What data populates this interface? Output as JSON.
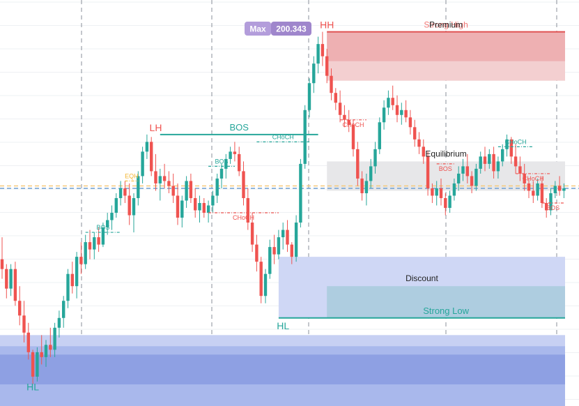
{
  "chart_data": {
    "type": "candlestick",
    "title": "",
    "xlabel": "",
    "ylabel": "",
    "ylim": [
      185.0,
      201.6
    ],
    "grid": true,
    "max_badge": {
      "label": "Max",
      "value": "200.343"
    },
    "swing_labels": [
      {
        "text": "HH",
        "bar": 74,
        "price": 200.3,
        "pos": "above"
      },
      {
        "text": "LH",
        "bar": 35,
        "price": 196.1,
        "pos": "above"
      },
      {
        "text": "HL",
        "bar": 7,
        "price": 186.1,
        "pos": "below"
      },
      {
        "text": "HL",
        "bar": 64,
        "price": 188.6,
        "pos": "below"
      }
    ],
    "structure_breaks": [
      {
        "text": "BOS",
        "from_bar": 19,
        "to_bar": 27,
        "price": 192.1,
        "kind": "bull",
        "major": false
      },
      {
        "text": "EQH",
        "from_bar": 28,
        "to_bar": 31,
        "price": 194.2,
        "kind": "eq",
        "major": false
      },
      {
        "text": "BOS",
        "from_bar": 36,
        "to_bar": 72,
        "price": 196.1,
        "kind": "bull",
        "major": true
      },
      {
        "text": "BOS",
        "from_bar": 47,
        "to_bar": 53,
        "price": 194.8,
        "kind": "bull",
        "major": false
      },
      {
        "text": "CHoCH",
        "from_bar": 47,
        "to_bar": 63,
        "price": 192.9,
        "kind": "bear",
        "major": false
      },
      {
        "text": "CHoCH",
        "from_bar": 58,
        "to_bar": 70,
        "price": 195.8,
        "kind": "bull",
        "major": false
      },
      {
        "text": "CHoCH",
        "from_bar": 77,
        "to_bar": 83,
        "price": 196.7,
        "kind": "bear",
        "major": false
      },
      {
        "text": "BOS",
        "from_bar": 99,
        "to_bar": 103,
        "price": 194.9,
        "kind": "bear",
        "major": false
      },
      {
        "text": "CHoCH",
        "from_bar": 113,
        "to_bar": 121,
        "price": 195.6,
        "kind": "bull",
        "major": false
      },
      {
        "text": "CHoCH",
        "from_bar": 117,
        "to_bar": 125,
        "price": 194.5,
        "kind": "bear",
        "major": false
      },
      {
        "text": "BOS",
        "from_bar": 123,
        "to_bar": 128,
        "price": 193.3,
        "kind": "bear",
        "major": false
      }
    ],
    "zones": {
      "premium_label": "Premium",
      "strong_high_label": "Strong High",
      "equilibrium_label": "Equilibrium",
      "discount_label": "Discount",
      "strong_low_label": "Strong Low",
      "premium": {
        "from_bar": 74,
        "price_top": 200.3,
        "price_bottom": 198.3
      },
      "equilibrium": {
        "from_bar": 74,
        "price_top": 195.0,
        "price_bottom": 193.8
      },
      "discount": {
        "from_bar": 63,
        "price_top": 191.1,
        "price_bottom": 188.6
      },
      "strong_low_box": {
        "from_bar": 74,
        "price_top": 189.9,
        "price_bottom": 188.6
      },
      "strong_high_line": {
        "from_bar": 74,
        "price": 200.3
      },
      "strong_low_line": {
        "from_bar": 63,
        "price": 188.6
      }
    },
    "order_block": {
      "price_top": 187.9,
      "price_bottom": 185.0
    },
    "reference_lines": [
      {
        "price": 194.0,
        "color": "#f5c87a"
      },
      {
        "price": 193.9,
        "color": "#6f9fd1"
      }
    ],
    "candles": [
      [
        191.0,
        191.9,
        190.2,
        190.6
      ],
      [
        190.6,
        190.8,
        189.4,
        189.8
      ],
      [
        189.8,
        190.8,
        189.5,
        190.6
      ],
      [
        190.6,
        190.9,
        189.1,
        189.3
      ],
      [
        189.3,
        189.9,
        188.3,
        188.7
      ],
      [
        188.7,
        189.3,
        187.6,
        188.0
      ],
      [
        188.0,
        188.4,
        186.9,
        187.2
      ],
      [
        187.2,
        187.3,
        185.9,
        186.2
      ],
      [
        186.2,
        187.4,
        186.0,
        187.2
      ],
      [
        187.2,
        187.9,
        186.7,
        187.0
      ],
      [
        187.0,
        187.7,
        186.6,
        187.5
      ],
      [
        187.5,
        188.2,
        187.0,
        187.3
      ],
      [
        187.3,
        188.4,
        187.0,
        188.2
      ],
      [
        188.2,
        188.9,
        187.8,
        188.6
      ],
      [
        188.6,
        189.5,
        188.2,
        189.3
      ],
      [
        189.3,
        190.6,
        189.0,
        190.4
      ],
      [
        190.4,
        190.9,
        189.6,
        189.9
      ],
      [
        189.9,
        191.3,
        189.4,
        191.1
      ],
      [
        191.1,
        191.7,
        190.4,
        190.8
      ],
      [
        190.8,
        192.0,
        190.6,
        191.7
      ],
      [
        191.7,
        192.2,
        191.0,
        191.4
      ],
      [
        191.4,
        192.1,
        191.0,
        191.9
      ],
      [
        191.9,
        192.3,
        191.3,
        191.6
      ],
      [
        191.6,
        192.5,
        191.5,
        192.3
      ],
      [
        192.3,
        192.9,
        192.0,
        192.6
      ],
      [
        192.6,
        193.2,
        192.2,
        192.9
      ],
      [
        192.9,
        193.7,
        192.7,
        193.5
      ],
      [
        193.5,
        194.2,
        193.2,
        193.9
      ],
      [
        193.9,
        194.2,
        193.3,
        193.6
      ],
      [
        193.6,
        194.1,
        192.4,
        192.8
      ],
      [
        192.8,
        193.7,
        192.1,
        193.5
      ],
      [
        193.5,
        194.6,
        193.2,
        194.4
      ],
      [
        194.4,
        195.6,
        194.1,
        195.4
      ],
      [
        195.4,
        196.1,
        195.1,
        195.8
      ],
      [
        195.8,
        196.0,
        194.4,
        194.6
      ],
      [
        194.6,
        195.3,
        193.8,
        194.1
      ],
      [
        194.1,
        194.7,
        193.4,
        194.4
      ],
      [
        194.4,
        194.9,
        193.9,
        194.2
      ],
      [
        194.2,
        194.6,
        193.7,
        194.0
      ],
      [
        194.0,
        194.5,
        193.3,
        193.6
      ],
      [
        193.6,
        194.1,
        192.4,
        192.7
      ],
      [
        192.7,
        193.6,
        192.3,
        193.4
      ],
      [
        193.4,
        194.4,
        193.1,
        194.2
      ],
      [
        194.2,
        194.5,
        193.3,
        193.5
      ],
      [
        193.5,
        193.9,
        192.7,
        193.0
      ],
      [
        193.0,
        193.6,
        192.5,
        193.3
      ],
      [
        193.3,
        193.5,
        192.7,
        192.9
      ],
      [
        192.9,
        193.4,
        192.5,
        193.2
      ],
      [
        193.2,
        193.8,
        192.9,
        193.6
      ],
      [
        193.6,
        194.5,
        193.3,
        194.3
      ],
      [
        194.3,
        194.9,
        193.9,
        194.7
      ],
      [
        194.7,
        195.3,
        194.3,
        195.1
      ],
      [
        195.1,
        195.6,
        194.9,
        195.4
      ],
      [
        195.4,
        195.8,
        195.0,
        195.3
      ],
      [
        195.3,
        195.6,
        194.4,
        194.6
      ],
      [
        194.6,
        195.0,
        193.2,
        193.5
      ],
      [
        193.5,
        193.9,
        192.2,
        192.5
      ],
      [
        192.5,
        192.9,
        191.3,
        191.6
      ],
      [
        191.6,
        192.0,
        190.5,
        190.9
      ],
      [
        190.9,
        191.1,
        189.2,
        189.5
      ],
      [
        189.5,
        190.6,
        189.2,
        190.4
      ],
      [
        190.4,
        191.8,
        190.2,
        191.5
      ],
      [
        191.5,
        192.0,
        190.8,
        191.2
      ],
      [
        191.2,
        192.2,
        191.0,
        191.9
      ],
      [
        191.9,
        192.5,
        191.4,
        192.2
      ],
      [
        192.2,
        192.6,
        191.3,
        191.6
      ],
      [
        191.6,
        191.7,
        190.8,
        191.1
      ],
      [
        191.1,
        192.8,
        190.9,
        192.5
      ],
      [
        192.5,
        195.1,
        192.3,
        194.9
      ],
      [
        194.9,
        197.3,
        194.7,
        197.1
      ],
      [
        197.1,
        198.4,
        196.8,
        198.2
      ],
      [
        198.2,
        199.3,
        197.8,
        199.0
      ],
      [
        199.0,
        200.1,
        198.6,
        199.8
      ],
      [
        199.8,
        200.3,
        198.9,
        199.3
      ],
      [
        199.3,
        199.6,
        198.2,
        198.5
      ],
      [
        198.5,
        198.8,
        197.5,
        197.8
      ],
      [
        197.8,
        198.0,
        197.1,
        197.4
      ],
      [
        197.4,
        197.9,
        196.6,
        196.9
      ],
      [
        196.9,
        197.3,
        196.4,
        196.7
      ],
      [
        196.7,
        197.1,
        196.2,
        196.5
      ],
      [
        196.5,
        196.7,
        195.2,
        195.5
      ],
      [
        195.5,
        195.8,
        194.0,
        194.3
      ],
      [
        194.3,
        194.6,
        193.4,
        193.7
      ],
      [
        193.7,
        194.5,
        193.2,
        194.2
      ],
      [
        194.2,
        195.1,
        193.9,
        194.8
      ],
      [
        194.8,
        195.8,
        194.5,
        195.5
      ],
      [
        195.5,
        196.8,
        195.3,
        196.6
      ],
      [
        196.6,
        197.5,
        196.3,
        197.2
      ],
      [
        197.2,
        197.9,
        196.9,
        197.6
      ],
      [
        197.6,
        198.1,
        197.1,
        197.3
      ],
      [
        197.3,
        197.7,
        196.6,
        196.9
      ],
      [
        196.9,
        197.4,
        196.5,
        197.1
      ],
      [
        197.1,
        197.5,
        196.6,
        196.8
      ],
      [
        196.8,
        197.1,
        196.1,
        196.4
      ],
      [
        196.4,
        196.7,
        195.6,
        195.9
      ],
      [
        195.9,
        196.2,
        195.3,
        195.6
      ],
      [
        195.6,
        195.9,
        194.9,
        195.2
      ],
      [
        195.2,
        195.4,
        193.6,
        193.9
      ],
      [
        193.9,
        194.1,
        193.3,
        193.6
      ],
      [
        193.6,
        194.2,
        193.2,
        193.9
      ],
      [
        193.9,
        194.3,
        193.2,
        193.5
      ],
      [
        193.5,
        193.7,
        192.8,
        193.1
      ],
      [
        193.1,
        193.8,
        192.9,
        193.6
      ],
      [
        193.6,
        194.3,
        193.4,
        194.1
      ],
      [
        194.1,
        194.8,
        193.8,
        194.5
      ],
      [
        194.5,
        195.1,
        194.2,
        194.8
      ],
      [
        194.8,
        195.3,
        194.1,
        194.4
      ],
      [
        194.4,
        194.6,
        193.7,
        194.0
      ],
      [
        194.0,
        194.9,
        193.8,
        194.7
      ],
      [
        194.7,
        195.4,
        194.5,
        195.2
      ],
      [
        195.2,
        195.6,
        194.6,
        194.9
      ],
      [
        194.9,
        195.5,
        194.7,
        195.3
      ],
      [
        195.3,
        195.6,
        194.3,
        194.6
      ],
      [
        194.6,
        195.2,
        194.3,
        195.0
      ],
      [
        195.0,
        195.7,
        194.8,
        195.5
      ],
      [
        195.5,
        196.1,
        195.2,
        195.9
      ],
      [
        195.9,
        196.0,
        194.9,
        195.2
      ],
      [
        195.2,
        195.7,
        194.5,
        194.8
      ],
      [
        194.8,
        195.2,
        194.2,
        194.5
      ],
      [
        194.5,
        194.9,
        193.8,
        194.1
      ],
      [
        194.1,
        194.3,
        193.5,
        193.8
      ],
      [
        193.8,
        194.2,
        193.3,
        193.6
      ],
      [
        193.6,
        194.3,
        193.4,
        194.1
      ],
      [
        194.1,
        194.4,
        193.1,
        193.3
      ],
      [
        193.3,
        193.5,
        192.7,
        193.0
      ],
      [
        193.0,
        193.9,
        192.8,
        193.7
      ],
      [
        193.7,
        194.2,
        193.5,
        194.0
      ],
      [
        194.0,
        194.4,
        193.6,
        193.8
      ],
      [
        193.8,
        194.1,
        193.5,
        193.9
      ]
    ]
  }
}
